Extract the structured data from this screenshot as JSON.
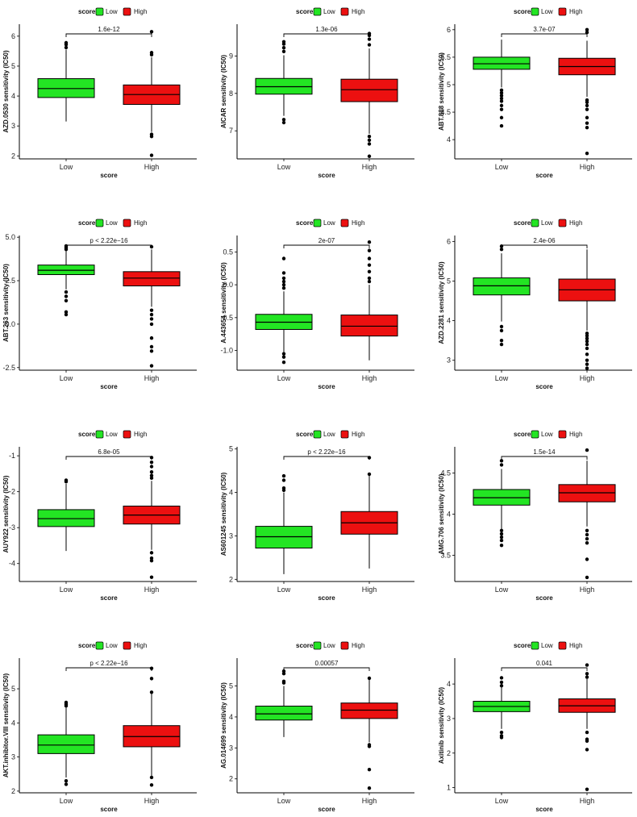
{
  "chart_data": [
    {
      "type": "box",
      "title": "",
      "ylabel": "AZD.0530 sensitivity (IC50)",
      "xlabel": "score",
      "categories": [
        "Low",
        "High"
      ],
      "legend": {
        "title": "score",
        "items": [
          "Low",
          "High"
        ]
      },
      "pvalue": "1.6e-12",
      "ylim": [
        1.9,
        6.4
      ],
      "yticks": [
        2,
        3,
        4,
        5,
        6
      ],
      "boxes": [
        {
          "group": "Low",
          "q1": 3.95,
          "median": 4.25,
          "q3": 4.58,
          "whisker_low": 3.15,
          "whisker_high": 5.55,
          "outliers": [
            5.62,
            5.72,
            5.78
          ]
        },
        {
          "group": "High",
          "q1": 3.72,
          "median": 4.05,
          "q3": 4.37,
          "whisker_low": 2.8,
          "whisker_high": 5.3,
          "outliers": [
            2.72,
            2.65,
            2.02,
            5.38,
            5.45,
            6.15
          ]
        }
      ]
    },
    {
      "type": "box",
      "title": "",
      "ylabel": "AICAR sensitivity (IC50)",
      "xlabel": "score",
      "categories": [
        "Low",
        "High"
      ],
      "legend": {
        "title": "score",
        "items": [
          "Low",
          "High"
        ]
      },
      "pvalue": "1.3e-06",
      "ylim": [
        6.25,
        9.85
      ],
      "yticks": [
        7,
        8,
        9
      ],
      "boxes": [
        {
          "group": "Low",
          "q1": 7.98,
          "median": 8.18,
          "q3": 8.4,
          "whisker_low": 7.4,
          "whisker_high": 9.02,
          "outliers": [
            7.3,
            7.22,
            9.12,
            9.22,
            9.32,
            9.38
          ]
        },
        {
          "group": "High",
          "q1": 7.78,
          "median": 8.1,
          "q3": 8.38,
          "whisker_low": 6.92,
          "whisker_high": 9.2,
          "outliers": [
            6.85,
            6.75,
            6.65,
            6.32,
            9.3,
            9.45,
            9.55,
            9.6
          ]
        }
      ]
    },
    {
      "type": "box",
      "title": "",
      "ylabel": "ABT.888 sensitivity (IC50)",
      "xlabel": "score",
      "categories": [
        "Low",
        "High"
      ],
      "legend": {
        "title": "score",
        "items": [
          "Low",
          "High"
        ]
      },
      "pvalue": "3.7e-07",
      "ylim": [
        3.65,
        6.1
      ],
      "yticks": [
        4.0,
        4.5,
        5.0,
        5.5,
        6.0
      ],
      "boxes": [
        {
          "group": "Low",
          "q1": 5.28,
          "median": 5.38,
          "q3": 5.5,
          "whisker_low": 4.95,
          "whisker_high": 5.82,
          "outliers": [
            4.9,
            4.85,
            4.8,
            4.75,
            4.7,
            4.62,
            4.55,
            4.4,
            4.25
          ]
        },
        {
          "group": "High",
          "q1": 5.18,
          "median": 5.33,
          "q3": 5.48,
          "whisker_low": 4.78,
          "whisker_high": 5.8,
          "outliers": [
            4.72,
            4.68,
            4.62,
            4.55,
            4.4,
            4.3,
            4.22,
            3.75,
            5.95,
            6.0
          ]
        }
      ]
    },
    {
      "type": "box",
      "title": "",
      "ylabel": "ABT.263 sensitivity (IC50)",
      "xlabel": "score",
      "categories": [
        "Low",
        "High"
      ],
      "legend": {
        "title": "score",
        "items": [
          "Low",
          "High"
        ]
      },
      "pvalue": "p < 2.22e−16",
      "ylim": [
        -2.65,
        5.1
      ],
      "yticks": [
        -2.5,
        0.0,
        2.5,
        5.0
      ],
      "ytick_labels": [
        "-2.5",
        "0.0",
        "2.5",
        "5.0"
      ],
      "boxes": [
        {
          "group": "Low",
          "q1": 2.85,
          "median": 3.1,
          "q3": 3.4,
          "whisker_low": 2.0,
          "whisker_high": 4.2,
          "outliers": [
            1.85,
            1.6,
            1.35,
            0.7,
            0.55,
            4.3,
            4.4,
            4.5
          ]
        },
        {
          "group": "High",
          "q1": 2.2,
          "median": 2.65,
          "q3": 3.02,
          "whisker_low": 1.0,
          "whisker_high": 4.3,
          "outliers": [
            0.8,
            0.55,
            0.3,
            0.0,
            -0.8,
            -1.3,
            -1.55,
            -2.4,
            4.45
          ]
        }
      ]
    },
    {
      "type": "box",
      "title": "",
      "ylabel": "A.443654 sensitivity (IC50)",
      "xlabel": "score",
      "categories": [
        "Low",
        "High"
      ],
      "legend": {
        "title": "score",
        "items": [
          "Low",
          "High"
        ]
      },
      "pvalue": "2e-07",
      "ylim": [
        -1.3,
        0.75
      ],
      "yticks": [
        -1.0,
        -0.5,
        0.0,
        0.5
      ],
      "ytick_labels": [
        "-1.0",
        "-0.5",
        "0.0",
        "0.5"
      ],
      "boxes": [
        {
          "group": "Low",
          "q1": -0.68,
          "median": -0.57,
          "q3": -0.45,
          "whisker_low": -1.02,
          "whisker_high": -0.1,
          "outliers": [
            -1.05,
            -1.1,
            -1.18,
            -0.05,
            0.0,
            0.05,
            0.1,
            0.18,
            0.4
          ]
        },
        {
          "group": "High",
          "q1": -0.78,
          "median": -0.63,
          "q3": -0.46,
          "whisker_low": -1.15,
          "whisker_high": -0.0,
          "outliers": [
            0.05,
            0.1,
            0.2,
            0.3,
            0.4,
            0.52,
            0.65
          ]
        }
      ]
    },
    {
      "type": "box",
      "title": "",
      "ylabel": "AZD.2281 sensitivity (IC50)",
      "xlabel": "score",
      "categories": [
        "Low",
        "High"
      ],
      "legend": {
        "title": "score",
        "items": [
          "Low",
          "High"
        ]
      },
      "pvalue": "2.4e-06",
      "ylim": [
        2.75,
        6.15
      ],
      "yticks": [
        3,
        4,
        5,
        6
      ],
      "boxes": [
        {
          "group": "Low",
          "q1": 4.65,
          "median": 4.88,
          "q3": 5.08,
          "whisker_low": 3.98,
          "whisker_high": 5.7,
          "outliers": [
            3.85,
            3.75,
            3.5,
            3.4,
            5.8,
            5.88
          ]
        },
        {
          "group": "High",
          "q1": 4.5,
          "median": 4.78,
          "q3": 5.05,
          "whisker_low": 3.75,
          "whisker_high": 5.8,
          "outliers": [
            3.68,
            3.62,
            3.55,
            3.48,
            3.4,
            3.3,
            3.15,
            3.0,
            2.9,
            2.8
          ]
        }
      ]
    },
    {
      "type": "box",
      "title": "",
      "ylabel": "AUY922 sensitivity (IC50)",
      "xlabel": "score",
      "categories": [
        "Low",
        "High"
      ],
      "legend": {
        "title": "score",
        "items": [
          "Low",
          "High"
        ]
      },
      "pvalue": "6.8e-05",
      "ylim": [
        -4.5,
        -0.75
      ],
      "yticks": [
        -4,
        -3,
        -2,
        -1
      ],
      "boxes": [
        {
          "group": "Low",
          "q1": -2.97,
          "median": -2.75,
          "q3": -2.5,
          "whisker_low": -3.65,
          "whisker_high": -1.78,
          "outliers": [
            -1.72,
            -1.68
          ]
        },
        {
          "group": "High",
          "q1": -2.9,
          "median": -2.65,
          "q3": -2.4,
          "whisker_low": -3.62,
          "whisker_high": -1.7,
          "outliers": [
            -1.62,
            -1.55,
            -1.45,
            -1.3,
            -1.18,
            -1.05,
            -3.7,
            -3.85,
            -3.92,
            -4.38
          ]
        }
      ]
    },
    {
      "type": "box",
      "title": "",
      "ylabel": "AS601245 sensitivity (IC50)",
      "xlabel": "score",
      "categories": [
        "Low",
        "High"
      ],
      "legend": {
        "title": "score",
        "items": [
          "Low",
          "High"
        ]
      },
      "pvalue": "p < 2.22e−16",
      "ylim": [
        1.95,
        5.05
      ],
      "yticks": [
        2,
        3,
        4,
        5
      ],
      "boxes": [
        {
          "group": "Low",
          "q1": 2.72,
          "median": 2.98,
          "q3": 3.22,
          "whisker_low": 2.12,
          "whisker_high": 4.0,
          "outliers": [
            4.05,
            4.1,
            4.28,
            4.38
          ]
        },
        {
          "group": "High",
          "q1": 3.04,
          "median": 3.3,
          "q3": 3.56,
          "whisker_low": 2.25,
          "whisker_high": 4.4,
          "outliers": [
            4.42,
            4.8
          ]
        }
      ]
    },
    {
      "type": "box",
      "title": "",
      "ylabel": "AMG.706 sensitivity (IC50)",
      "xlabel": "score",
      "categories": [
        "Low",
        "High"
      ],
      "legend": {
        "title": "score",
        "items": [
          "Low",
          "High"
        ]
      },
      "pvalue": "1.5e-14",
      "ylim": [
        3.18,
        4.82
      ],
      "yticks": [
        3.5,
        4.0,
        4.5
      ],
      "boxes": [
        {
          "group": "Low",
          "q1": 4.11,
          "median": 4.2,
          "q3": 4.3,
          "whisker_low": 3.82,
          "whisker_high": 4.55,
          "outliers": [
            3.8,
            3.76,
            3.72,
            3.68,
            3.62,
            4.6,
            4.65
          ]
        },
        {
          "group": "High",
          "q1": 4.15,
          "median": 4.26,
          "q3": 4.36,
          "whisker_low": 3.85,
          "whisker_high": 4.65,
          "outliers": [
            3.8,
            3.75,
            3.7,
            3.65,
            3.45,
            3.23,
            4.78
          ]
        }
      ]
    },
    {
      "type": "box",
      "title": "",
      "ylabel": "AKT.inhibitor.VIII sensitivity (IC50)",
      "xlabel": "score",
      "categories": [
        "Low",
        "High"
      ],
      "legend": {
        "title": "score",
        "items": [
          "Low",
          "High"
        ]
      },
      "pvalue": "p < 2.22e−16",
      "ylim": [
        1.95,
        5.9
      ],
      "yticks": [
        2,
        3,
        4,
        5
      ],
      "boxes": [
        {
          "group": "Low",
          "q1": 3.1,
          "median": 3.35,
          "q3": 3.65,
          "whisker_low": 2.4,
          "whisker_high": 4.45,
          "outliers": [
            2.3,
            2.2,
            4.5,
            4.55,
            4.6
          ]
        },
        {
          "group": "High",
          "q1": 3.3,
          "median": 3.6,
          "q3": 3.92,
          "whisker_low": 2.45,
          "whisker_high": 4.85,
          "outliers": [
            2.4,
            2.18,
            4.9,
            5.3,
            5.6
          ]
        }
      ]
    },
    {
      "type": "box",
      "title": "",
      "ylabel": "AG.014699 sensitivity (IC50)",
      "xlabel": "score",
      "categories": [
        "Low",
        "High"
      ],
      "legend": {
        "title": "score",
        "items": [
          "Low",
          "High"
        ]
      },
      "pvalue": "0.00057",
      "ylim": [
        1.55,
        5.9
      ],
      "yticks": [
        2,
        3,
        4,
        5
      ],
      "boxes": [
        {
          "group": "Low",
          "q1": 3.9,
          "median": 4.1,
          "q3": 4.35,
          "whisker_low": 3.35,
          "whisker_high": 5.0,
          "outliers": [
            5.1,
            5.15,
            5.4,
            5.48
          ]
        },
        {
          "group": "High",
          "q1": 3.95,
          "median": 4.22,
          "q3": 4.45,
          "whisker_low": 3.18,
          "whisker_high": 5.2,
          "outliers": [
            3.1,
            3.05,
            2.3,
            1.7,
            5.25
          ]
        }
      ]
    },
    {
      "type": "box",
      "title": "",
      "ylabel": "Axitinib sensitivity (IC50)",
      "xlabel": "score",
      "categories": [
        "Low",
        "High"
      ],
      "legend": {
        "title": "score",
        "items": [
          "Low",
          "High"
        ]
      },
      "pvalue": "0.041",
      "ylim": [
        0.85,
        4.75
      ],
      "yticks": [
        1,
        2,
        3,
        4
      ],
      "boxes": [
        {
          "group": "Low",
          "q1": 3.2,
          "median": 3.35,
          "q3": 3.5,
          "whisker_low": 2.7,
          "whisker_high": 4.0,
          "outliers": [
            2.6,
            2.5,
            2.45,
            3.95,
            4.05,
            4.18
          ]
        },
        {
          "group": "High",
          "q1": 3.18,
          "median": 3.37,
          "q3": 3.57,
          "whisker_low": 2.7,
          "whisker_high": 4.15,
          "outliers": [
            2.6,
            2.4,
            2.35,
            2.1,
            0.95,
            4.2,
            4.3,
            4.55
          ]
        }
      ]
    }
  ],
  "colors": {
    "low": "#23e523",
    "high": "#ec1010",
    "axis": "#000000"
  }
}
